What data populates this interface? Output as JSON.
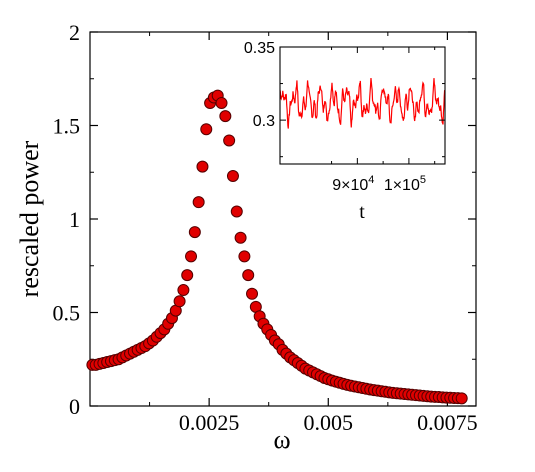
{
  "chart_data": [
    {
      "type": "scatter",
      "xlabel": "ω",
      "ylabel": "rescaled power",
      "xlim": [
        0,
        0.0081
      ],
      "ylim": [
        0,
        2
      ],
      "x_ticks": [
        {
          "value": 0.0025,
          "label": "0.0025"
        },
        {
          "value": 0.005,
          "label": "0.005"
        },
        {
          "value": 0.0075,
          "label": "0.0075"
        }
      ],
      "y_ticks": [
        {
          "value": 0,
          "label": "0"
        },
        {
          "value": 0.5,
          "label": "0.5"
        },
        {
          "value": 1,
          "label": "1"
        },
        {
          "value": 1.5,
          "label": "1.5"
        },
        {
          "value": 2,
          "label": "2"
        }
      ],
      "marker_color": "#e00000",
      "marker_edge": "#550000",
      "series": [
        {
          "x": [
            5e-05,
            0.00012,
            0.0002,
            0.00028,
            0.00036,
            0.00044,
            0.00052,
            0.0006,
            0.00068,
            0.00076,
            0.00084,
            0.00092,
            0.001,
            0.00108,
            0.00116,
            0.00124,
            0.00132,
            0.0014,
            0.00148,
            0.00156,
            0.00164,
            0.00172,
            0.0018,
            0.00188,
            0.00196,
            0.00204,
            0.00212,
            0.0022,
            0.00228,
            0.00236,
            0.00244,
            0.00252,
            0.0026,
            0.00268,
            0.00276,
            0.00284,
            0.00292,
            0.003,
            0.00308,
            0.00316,
            0.00324,
            0.00332,
            0.0034,
            0.00348,
            0.00356,
            0.00364,
            0.00372,
            0.0038,
            0.00388,
            0.00396,
            0.00404,
            0.00412,
            0.0042,
            0.00428,
            0.00436,
            0.00444,
            0.00452,
            0.0046,
            0.00468,
            0.00476,
            0.00484,
            0.00492,
            0.005,
            0.00508,
            0.00516,
            0.00524,
            0.00532,
            0.0054,
            0.00548,
            0.00556,
            0.00564,
            0.00572,
            0.0058,
            0.00588,
            0.00596,
            0.00604,
            0.00612,
            0.0062,
            0.00628,
            0.00636,
            0.00644,
            0.00652,
            0.0066,
            0.00668,
            0.00676,
            0.00684,
            0.00692,
            0.007,
            0.00708,
            0.00716,
            0.00724,
            0.00732,
            0.0074,
            0.00748,
            0.00756,
            0.00764,
            0.00772,
            0.0078
          ],
          "y": [
            0.22,
            0.22,
            0.225,
            0.23,
            0.235,
            0.24,
            0.245,
            0.25,
            0.26,
            0.27,
            0.28,
            0.29,
            0.3,
            0.31,
            0.32,
            0.335,
            0.35,
            0.37,
            0.39,
            0.41,
            0.44,
            0.47,
            0.51,
            0.56,
            0.62,
            0.7,
            0.8,
            0.93,
            1.09,
            1.28,
            1.48,
            1.62,
            1.65,
            1.66,
            1.62,
            1.55,
            1.42,
            1.23,
            1.04,
            0.9,
            0.8,
            0.7,
            0.6,
            0.53,
            0.48,
            0.44,
            0.41,
            0.38,
            0.35,
            0.33,
            0.3,
            0.28,
            0.26,
            0.245,
            0.23,
            0.215,
            0.2,
            0.19,
            0.18,
            0.17,
            0.16,
            0.15,
            0.143,
            0.136,
            0.13,
            0.124,
            0.118,
            0.113,
            0.108,
            0.104,
            0.1,
            0.096,
            0.092,
            0.088,
            0.085,
            0.082,
            0.079,
            0.076,
            0.073,
            0.07,
            0.068,
            0.066,
            0.064,
            0.062,
            0.06,
            0.058,
            0.056,
            0.054,
            0.052,
            0.05,
            0.049,
            0.048,
            0.046,
            0.045,
            0.044,
            0.043,
            0.042,
            0.041
          ]
        }
      ]
    },
    {
      "type": "line",
      "xlabel": "t",
      "ylabel": "",
      "xlim": [
        75000,
        107000
      ],
      "ylim": [
        0.27,
        0.35
      ],
      "x_ticks": [
        {
          "value": 90000,
          "mantissa": "9×10",
          "exp": "4"
        },
        {
          "value": 100000,
          "mantissa": "1×10",
          "exp": "5"
        }
      ],
      "y_ticks": [
        {
          "value": 0.3,
          "label": "0.3"
        },
        {
          "value": 0.35,
          "label": "0.35"
        }
      ],
      "line_color": "#ff0000",
      "n_points": 420,
      "mean": 0.312,
      "amplitude": 0.014
    }
  ]
}
